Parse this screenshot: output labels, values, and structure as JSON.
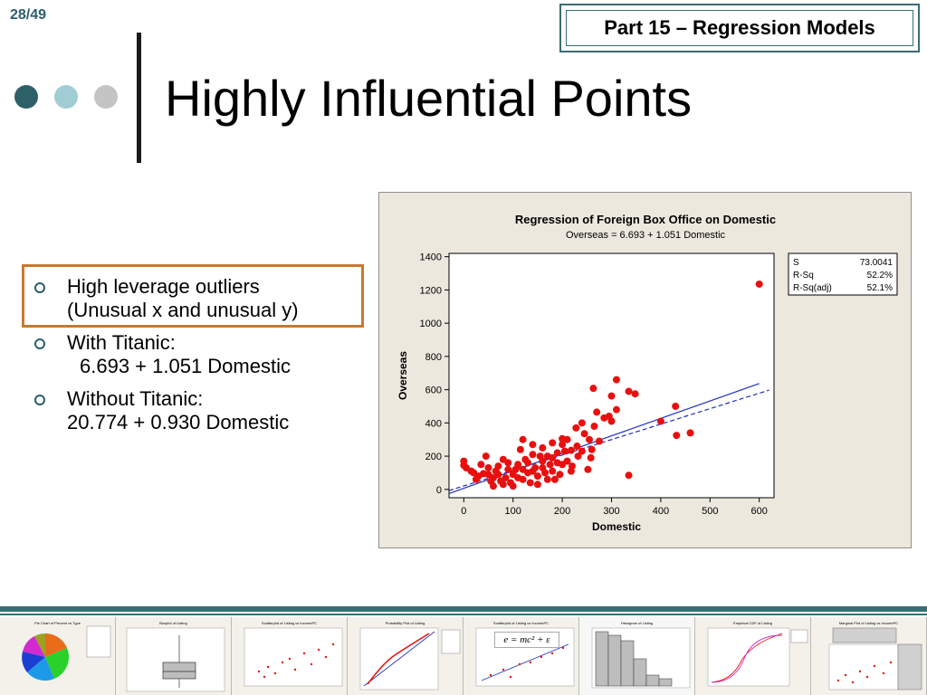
{
  "slide": {
    "page_number": "28/49",
    "part_label": "Part 15 – Regression Models",
    "title": "Highly Influential Points"
  },
  "bullets": [
    {
      "line1": "High leverage outliers",
      "line2": "(Unusual x and unusual y)"
    },
    {
      "line1": "With Titanic:",
      "line2": "6.693 + 1.051 Domestic"
    },
    {
      "line1": "Without Titanic:",
      "line2": "20.774 + 0.930 Domestic"
    }
  ],
  "chart_data": {
    "type": "scatter",
    "title": "Regression of Foreign Box Office on Domestic",
    "subtitle": "Overseas =  6.693 + 1.051 Domestic",
    "xlabel": "Domestic",
    "ylabel": "Overseas",
    "xlim": [
      -30,
      630
    ],
    "ylim": [
      -50,
      1420
    ],
    "xticks": [
      "0",
      "100",
      "200",
      "300",
      "400",
      "500",
      "600"
    ],
    "yticks": [
      "0",
      "200",
      "400",
      "600",
      "800",
      "1000",
      "1200",
      "1400"
    ],
    "points": [
      [
        600,
        1235
      ],
      [
        310,
        660
      ],
      [
        263,
        608
      ],
      [
        335,
        590
      ],
      [
        348,
        575
      ],
      [
        300,
        562
      ],
      [
        430,
        500
      ],
      [
        310,
        480
      ],
      [
        400,
        410
      ],
      [
        432,
        325
      ],
      [
        460,
        340
      ],
      [
        335,
        85
      ],
      [
        270,
        465
      ],
      [
        285,
        430
      ],
      [
        300,
        410
      ],
      [
        295,
        440
      ],
      [
        265,
        380
      ],
      [
        240,
        400
      ],
      [
        228,
        370
      ],
      [
        245,
        335
      ],
      [
        200,
        305
      ],
      [
        210,
        300
      ],
      [
        255,
        300
      ],
      [
        275,
        290
      ],
      [
        218,
        235
      ],
      [
        232,
        200
      ],
      [
        258,
        190
      ],
      [
        252,
        120
      ],
      [
        218,
        110
      ],
      [
        190,
        160
      ],
      [
        170,
        200
      ],
      [
        160,
        250
      ],
      [
        120,
        300
      ],
      [
        140,
        270
      ],
      [
        180,
        280
      ],
      [
        0,
        170
      ],
      [
        0,
        145
      ],
      [
        5,
        130
      ],
      [
        15,
        110
      ],
      [
        20,
        100
      ],
      [
        30,
        80
      ],
      [
        40,
        95
      ],
      [
        50,
        130
      ],
      [
        60,
        70
      ],
      [
        70,
        140
      ],
      [
        80,
        180
      ],
      [
        90,
        120
      ],
      [
        100,
        90
      ],
      [
        110,
        150
      ],
      [
        120,
        60
      ],
      [
        130,
        100
      ],
      [
        140,
        210
      ],
      [
        150,
        80
      ],
      [
        160,
        130
      ],
      [
        170,
        60
      ],
      [
        180,
        110
      ],
      [
        190,
        220
      ],
      [
        200,
        150
      ],
      [
        210,
        170
      ],
      [
        220,
        140
      ],
      [
        230,
        260
      ],
      [
        175,
        150
      ],
      [
        145,
        130
      ],
      [
        125,
        180
      ],
      [
        105,
        120
      ],
      [
        85,
        70
      ],
      [
        65,
        110
      ],
      [
        55,
        50
      ],
      [
        45,
        200
      ],
      [
        35,
        150
      ],
      [
        95,
        40
      ],
      [
        115,
        240
      ],
      [
        135,
        40
      ],
      [
        155,
        200
      ],
      [
        165,
        100
      ],
      [
        185,
        60
      ],
      [
        195,
        90
      ],
      [
        205,
        230
      ],
      [
        150,
        30
      ],
      [
        100,
        20
      ],
      [
        80,
        30
      ],
      [
        60,
        20
      ],
      [
        110,
        70
      ],
      [
        130,
        160
      ],
      [
        140,
        110
      ],
      [
        70,
        90
      ],
      [
        90,
        160
      ],
      [
        50,
        90
      ],
      [
        25,
        60
      ],
      [
        75,
        50
      ],
      [
        120,
        120
      ],
      [
        160,
        170
      ],
      [
        180,
        190
      ],
      [
        200,
        270
      ],
      [
        240,
        230
      ],
      [
        260,
        240
      ]
    ],
    "fit_lines": [
      {
        "style": "solid",
        "color": "#1f2fbf",
        "intercept": 6.693,
        "slope": 1.051
      },
      {
        "style": "dashed",
        "color": "#1f2fbf",
        "intercept": 20.774,
        "slope": 0.93
      }
    ],
    "point_color": "#e8100f",
    "stats": [
      {
        "label": "S",
        "value": "73.0041"
      },
      {
        "label": "R-Sq",
        "value": "52.2%"
      },
      {
        "label": "R-Sq(adj)",
        "value": "52.1%"
      }
    ]
  },
  "thumbnails": [
    {
      "title": "Pie Chart of Percent vs Type"
    },
    {
      "title": "Boxplot of Listing"
    },
    {
      "title": "Scatterplot of Listing vs IncomePC"
    },
    {
      "title": "Probability Plot of Listing"
    },
    {
      "title": "Scatterplot of Listing vs IncomePC",
      "formula": "e = mc² + ε"
    },
    {
      "title": "Histogram of Listing"
    },
    {
      "title": "Empirical CDF of Listing"
    },
    {
      "title": "Marginal Plot of Listing vs IncomePC"
    }
  ],
  "colors": {
    "accent": "#3b6b74",
    "highlight": "#c87a2e"
  }
}
